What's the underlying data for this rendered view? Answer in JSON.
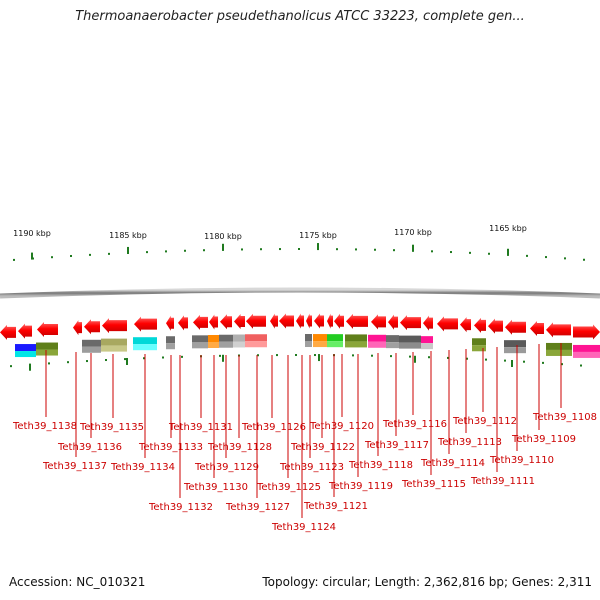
{
  "title": "Thermoanaerobacter pseudethanolicus ATCC 33223, complete gen...",
  "footer": {
    "accession": "Accession: NC_010321",
    "topology": "Topology: circular; Length: 2,362,816 bp; Genes: 2,311"
  },
  "colors": {
    "gene_arrow": "#ff0000",
    "label_red": "#cc0000",
    "tick_green": "#1f7a1f",
    "backbone": "#888888"
  },
  "scale_labels": [
    "1190 kbp",
    "1185 kbp",
    "1180 kbp",
    "1175 kbp",
    "1170 kbp",
    "1165 kbp"
  ],
  "genes": [
    "Teth39_1138",
    "Teth39_1137",
    "Teth39_1136",
    "Teth39_1135",
    "Teth39_1134",
    "Teth39_1133",
    "Teth39_1132",
    "Teth39_1131",
    "Teth39_1130",
    "Teth39_1129",
    "Teth39_1128",
    "Teth39_1127",
    "Teth39_1126",
    "Teth39_1125",
    "Teth39_1124",
    "Teth39_1123",
    "Teth39_1122",
    "Teth39_1121",
    "Teth39_1120",
    "Teth39_1119",
    "Teth39_1118",
    "Teth39_1117",
    "Teth39_1116",
    "Teth39_1115",
    "Teth39_1114",
    "Teth39_1113",
    "Teth39_1112",
    "Teth39_1111",
    "Teth39_1110",
    "Teth39_1109",
    "Teth39_1108"
  ]
}
